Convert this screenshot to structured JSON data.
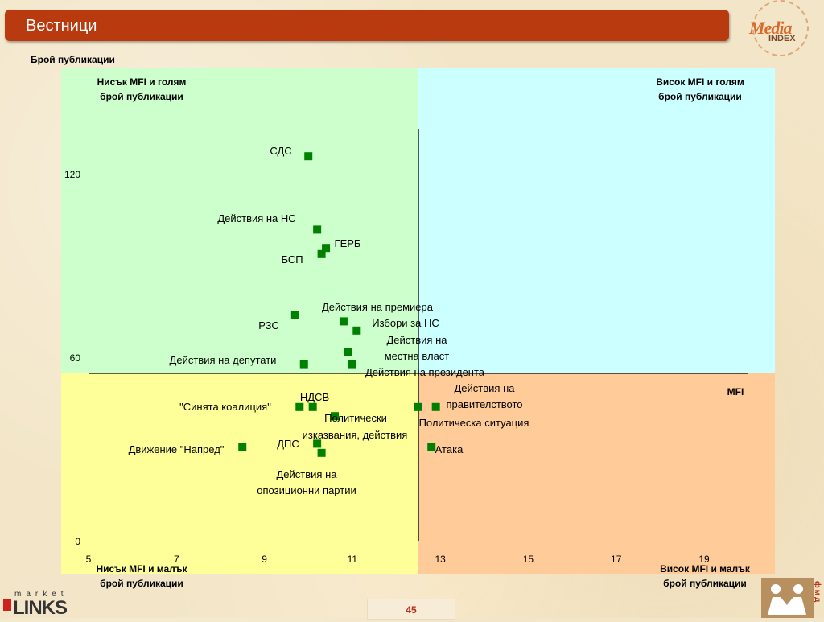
{
  "header": {
    "title": "Вестници"
  },
  "logo": {
    "media_text": "Media",
    "index_text": "INDEX"
  },
  "chart_data": {
    "type": "scatter",
    "title": "",
    "xlabel": "MFI",
    "ylabel": "Брой публикации",
    "xlim": [
      5,
      21
    ],
    "ylim": [
      0,
      135
    ],
    "x_ticks": [
      "5",
      "7",
      "9",
      "11",
      "13",
      "15",
      "17",
      "19"
    ],
    "y_ticks": [
      "0",
      "60",
      "120"
    ],
    "quadrants": {
      "top_left": [
        "Нисък MFI и голям",
        "брой публикации"
      ],
      "top_right": [
        "Висок MFI и голям",
        "брой публикации"
      ],
      "bottom_left": [
        "Нисък MFI и малък",
        "брой публикации"
      ],
      "bottom_right": [
        "Висок MFI и малък",
        "брой публикации"
      ]
    },
    "colors": {
      "top_left": "#ccffcc",
      "top_right": "#ccffff",
      "bottom_left": "#ffff99",
      "bottom_right": "#ffcc99",
      "marker": "#008000"
    },
    "points": [
      {
        "label": "СДС",
        "x": 10.0,
        "y": 126
      },
      {
        "label": "Действия на НС",
        "x": 10.2,
        "y": 102
      },
      {
        "label": "ГЕРБ",
        "x": 10.4,
        "y": 96
      },
      {
        "label": "БСП",
        "x": 10.3,
        "y": 94
      },
      {
        "label": "Действия на премиера",
        "x": 10.8,
        "y": 72
      },
      {
        "label": "Избори за НС",
        "x": 11.1,
        "y": 69
      },
      {
        "label": "РЗС",
        "x": 9.7,
        "y": 74
      },
      {
        "label": "Действия на местна власт",
        "x": 10.9,
        "y": 62
      },
      {
        "label": "Действия на депутати",
        "x": 9.9,
        "y": 58
      },
      {
        "label": "Действия на президента",
        "x": 11.0,
        "y": 58
      },
      {
        "label": "НДСВ",
        "x": 10.1,
        "y": 44
      },
      {
        "label": "\"Синята коалиция\"",
        "x": 9.8,
        "y": 44
      },
      {
        "label": "Политически изказвания, действия",
        "x": 10.6,
        "y": 41
      },
      {
        "label": "Действия на правителството",
        "x": 12.9,
        "y": 44
      },
      {
        "label": "Политическа ситуация",
        "x": 12.5,
        "y": 44
      },
      {
        "label": "Движение \"Напред\"",
        "x": 8.5,
        "y": 31
      },
      {
        "label": "ДПС",
        "x": 10.2,
        "y": 32
      },
      {
        "label": "Действия на опозиционни партии",
        "x": 10.3,
        "y": 29
      },
      {
        "label": "Атака",
        "x": 12.8,
        "y": 31
      }
    ]
  },
  "footer": {
    "page": "45",
    "market_text": "market",
    "links_text": "LINKS",
    "fmd_text": "фмд"
  }
}
